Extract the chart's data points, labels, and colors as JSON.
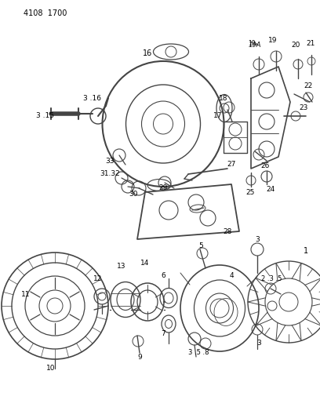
{
  "title": "4108  1700",
  "background_color": "#ffffff",
  "line_color": "#444444",
  "text_color": "#000000",
  "fig_width": 4.08,
  "fig_height": 5.33,
  "dpi": 100
}
